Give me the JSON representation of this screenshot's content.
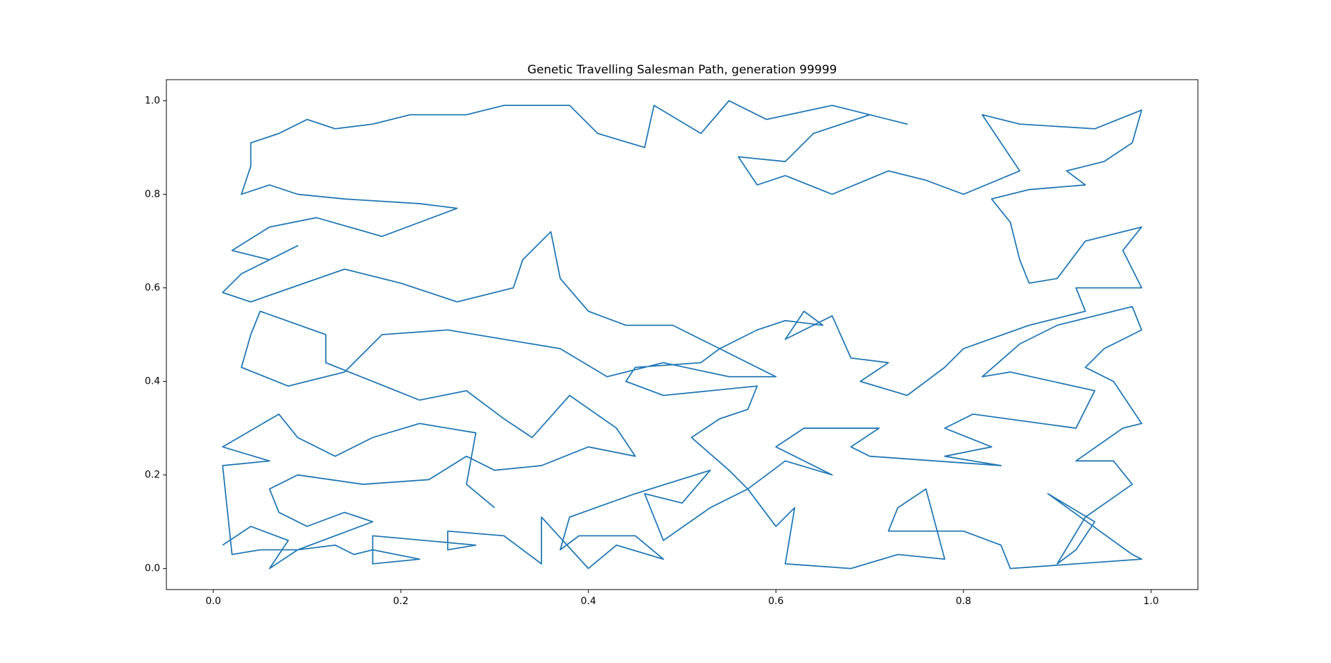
{
  "chart_data": {
    "type": "line",
    "title": "Genetic Travelling Salesman Path, generation 99999",
    "color": "#1f77b4",
    "xlim": [
      -0.05,
      1.05
    ],
    "ylim": [
      -0.045,
      1.045
    ],
    "xticks": [
      {
        "value": 0,
        "label": "0.0"
      },
      {
        "value": 0.2,
        "label": "0.2"
      },
      {
        "value": 0.4,
        "label": "0.4"
      },
      {
        "value": 0.6,
        "label": "0.6"
      },
      {
        "value": 0.8,
        "label": "0.8"
      },
      {
        "value": 1,
        "label": "1.0"
      }
    ],
    "yticks": [
      {
        "value": 0,
        "label": "0.0"
      },
      {
        "value": 0.2,
        "label": "0.2"
      },
      {
        "value": 0.4,
        "label": "0.4"
      },
      {
        "value": 0.6,
        "label": "0.6"
      },
      {
        "value": 0.8,
        "label": "0.8"
      },
      {
        "value": 1,
        "label": "1.0"
      }
    ],
    "x": [
      0.01,
      0.04,
      0.08,
      0.06,
      0.09,
      0.13,
      0.15,
      0.17,
      0.22,
      0.17,
      0.17,
      0.28,
      0.25,
      0.25,
      0.31,
      0.35,
      0.35,
      0.4,
      0.43,
      0.48,
      0.45,
      0.39,
      0.37,
      0.38,
      0.45,
      0.53,
      0.5,
      0.46,
      0.48,
      0.53,
      0.57,
      0.6,
      0.62,
      0.61,
      0.68,
      0.73,
      0.78,
      0.76,
      0.73,
      0.72,
      0.8,
      0.84,
      0.85,
      0.99,
      0.98,
      0.89,
      0.94,
      0.92,
      0.9,
      0.93,
      0.98,
      0.96,
      0.92,
      0.97,
      0.99,
      0.96,
      0.93,
      0.95,
      0.99,
      0.98,
      0.9,
      0.86,
      0.82,
      0.85,
      0.94,
      0.92,
      0.81,
      0.78,
      0.83,
      0.78,
      0.84,
      0.7,
      0.68,
      0.71,
      0.63,
      0.6,
      0.66,
      0.61,
      0.57,
      0.55,
      0.51,
      0.54,
      0.57,
      0.58,
      0.48,
      0.44,
      0.45,
      0.52,
      0.54,
      0.58,
      0.61,
      0.65,
      0.63,
      0.61,
      0.66,
      0.68,
      0.72,
      0.69,
      0.74,
      0.78,
      0.8,
      0.87,
      0.93,
      0.92,
      0.99,
      0.97,
      0.99,
      0.93,
      0.9,
      0.87,
      0.86,
      0.85,
      0.83,
      0.87,
      0.93,
      0.91,
      0.95,
      0.98,
      0.99,
      0.94,
      0.86,
      0.82,
      0.86,
      0.8,
      0.76,
      0.72,
      0.66,
      0.61,
      0.58,
      0.56,
      0.61,
      0.64,
      0.7,
      0.74,
      0.66,
      0.59,
      0.55,
      0.52,
      0.47,
      0.46,
      0.41,
      0.38,
      0.31,
      0.27,
      0.21,
      0.17,
      0.13,
      0.1,
      0.07,
      0.04,
      0.04,
      0.03,
      0.06,
      0.09,
      0.14,
      0.22,
      0.26,
      0.22,
      0.18,
      0.11,
      0.06,
      0.02,
      0.06,
      0.09,
      0.03,
      0.01,
      0.04,
      0.14,
      0.2,
      0.26,
      0.32,
      0.33,
      0.36,
      0.37,
      0.4,
      0.44,
      0.49,
      0.53,
      0.57,
      0.6,
      0.55,
      0.48,
      0.42,
      0.37,
      0.31,
      0.25,
      0.18,
      0.14,
      0.08,
      0.03,
      0.04,
      0.05,
      0.12,
      0.12,
      0.17,
      0.22,
      0.27,
      0.31,
      0.34,
      0.38,
      0.43,
      0.45,
      0.4,
      0.35,
      0.3,
      0.27,
      0.23,
      0.16,
      0.09,
      0.06,
      0.07,
      0.1,
      0.14,
      0.17,
      0.13,
      0.09,
      0.05,
      0.02,
      0.01,
      0.06,
      0.01,
      0.07,
      0.09,
      0.13,
      0.17,
      0.22,
      0.28,
      0.27,
      0.3
    ],
    "values": [
      0.05,
      0.09,
      0.06,
      0.0,
      0.04,
      0.05,
      0.03,
      0.04,
      0.02,
      0.01,
      0.07,
      0.05,
      0.04,
      0.08,
      0.07,
      0.01,
      0.11,
      0.0,
      0.05,
      0.02,
      0.07,
      0.07,
      0.04,
      0.11,
      0.16,
      0.21,
      0.14,
      0.16,
      0.06,
      0.13,
      0.17,
      0.09,
      0.13,
      0.01,
      0.0,
      0.03,
      0.02,
      0.17,
      0.13,
      0.08,
      0.08,
      0.05,
      0.0,
      0.02,
      0.03,
      0.16,
      0.1,
      0.04,
      0.01,
      0.11,
      0.18,
      0.23,
      0.23,
      0.3,
      0.31,
      0.4,
      0.43,
      0.47,
      0.51,
      0.56,
      0.52,
      0.48,
      0.41,
      0.42,
      0.38,
      0.3,
      0.33,
      0.3,
      0.26,
      0.24,
      0.22,
      0.24,
      0.26,
      0.3,
      0.3,
      0.26,
      0.2,
      0.23,
      0.17,
      0.21,
      0.28,
      0.32,
      0.34,
      0.39,
      0.37,
      0.4,
      0.43,
      0.44,
      0.47,
      0.51,
      0.53,
      0.52,
      0.55,
      0.49,
      0.54,
      0.45,
      0.44,
      0.4,
      0.37,
      0.43,
      0.47,
      0.52,
      0.55,
      0.6,
      0.6,
      0.68,
      0.73,
      0.7,
      0.62,
      0.61,
      0.66,
      0.74,
      0.79,
      0.81,
      0.82,
      0.85,
      0.87,
      0.91,
      0.98,
      0.94,
      0.95,
      0.97,
      0.85,
      0.8,
      0.83,
      0.85,
      0.8,
      0.84,
      0.82,
      0.88,
      0.87,
      0.93,
      0.97,
      0.95,
      0.99,
      0.96,
      1.0,
      0.93,
      0.99,
      0.9,
      0.93,
      0.99,
      0.99,
      0.97,
      0.97,
      0.95,
      0.94,
      0.96,
      0.93,
      0.91,
      0.86,
      0.8,
      0.82,
      0.8,
      0.79,
      0.78,
      0.77,
      0.74,
      0.71,
      0.75,
      0.73,
      0.68,
      0.66,
      0.69,
      0.63,
      0.59,
      0.57,
      0.64,
      0.61,
      0.57,
      0.6,
      0.66,
      0.72,
      0.62,
      0.55,
      0.52,
      0.52,
      0.48,
      0.44,
      0.41,
      0.41,
      0.44,
      0.41,
      0.47,
      0.49,
      0.51,
      0.5,
      0.42,
      0.39,
      0.43,
      0.5,
      0.55,
      0.5,
      0.44,
      0.4,
      0.36,
      0.38,
      0.32,
      0.28,
      0.37,
      0.3,
      0.24,
      0.26,
      0.22,
      0.21,
      0.24,
      0.19,
      0.18,
      0.2,
      0.17,
      0.12,
      0.09,
      0.12,
      0.1,
      0.07,
      0.04,
      0.04,
      0.03,
      0.22,
      0.23,
      0.26,
      0.33,
      0.28,
      0.24,
      0.28,
      0.31,
      0.29,
      0.18,
      0.13
    ]
  }
}
